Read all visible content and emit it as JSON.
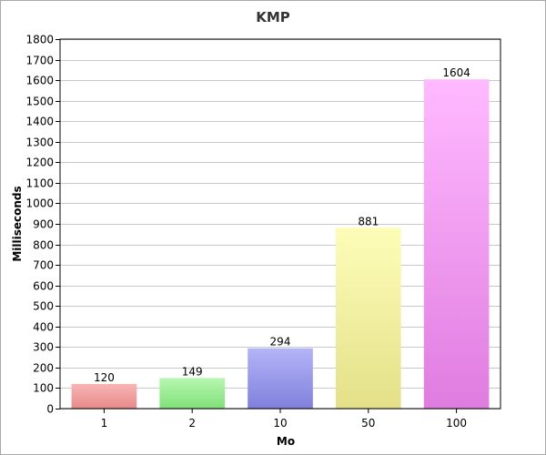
{
  "chart_data": {
    "type": "bar",
    "title": "KMP",
    "xlabel": "Mo",
    "ylabel": "Milliseconds",
    "categories": [
      "1",
      "2",
      "10",
      "50",
      "100"
    ],
    "values": [
      120,
      149,
      294,
      881,
      1604
    ],
    "value_labels": [
      "120",
      "149",
      "294",
      "881",
      "1604"
    ],
    "ylim": [
      0,
      1800
    ],
    "yticks": [
      0,
      100,
      200,
      300,
      400,
      500,
      600,
      700,
      800,
      900,
      1000,
      1100,
      1200,
      1300,
      1400,
      1500,
      1600,
      1700,
      1800
    ],
    "ytick_labels": [
      "0",
      "100",
      "200",
      "300",
      "400",
      "500",
      "600",
      "700",
      "800",
      "900",
      "1000",
      "1100",
      "1200",
      "1300",
      "1400",
      "1500",
      "1600",
      "1700",
      "1800"
    ],
    "grid": "horizontal",
    "legend": "none",
    "bar_colors": [
      {
        "top": "#f8b4b4",
        "bottom": "#e88a8a"
      },
      {
        "top": "#b8f7b0",
        "bottom": "#7fe078"
      },
      {
        "top": "#b4b4f8",
        "bottom": "#8080dd"
      },
      {
        "top": "#fdfdb8",
        "bottom": "#e4e088"
      },
      {
        "top": "#ffbaff",
        "bottom": "#e07ce0"
      }
    ]
  }
}
